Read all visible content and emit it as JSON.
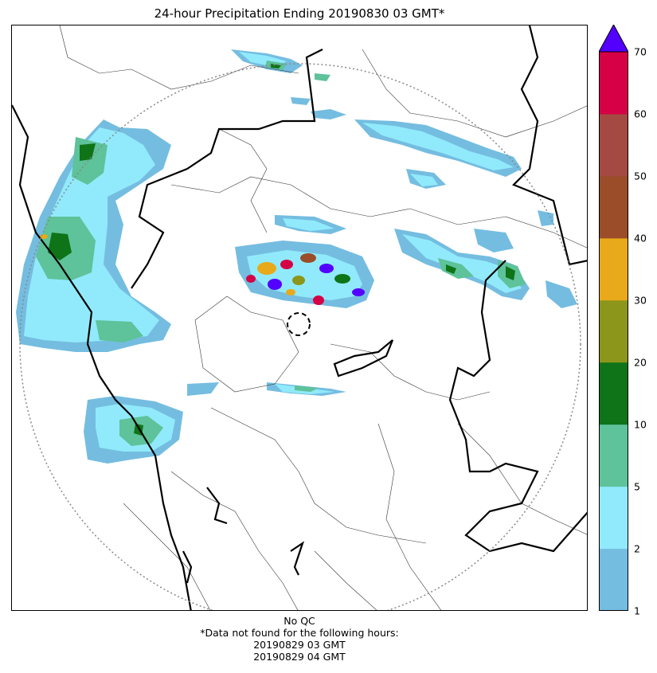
{
  "title": "24-hour Precipitation Ending 20190830 03 GMT*",
  "colorbar": {
    "tick_labels": [
      "1",
      "2",
      "5",
      "10",
      "20",
      "30",
      "40",
      "50",
      "60",
      "70"
    ],
    "levels": [
      1,
      2,
      5,
      10,
      20,
      30,
      40,
      50,
      60,
      70
    ],
    "colors": [
      "#74bde0",
      "#91eafb",
      "#5ec29a",
      "#0f7318",
      "#8b961a",
      "#e8a91a",
      "#9a4d28",
      "#a54a43",
      "#d50045"
    ],
    "extend_color": "#5300ff"
  },
  "footer": {
    "qc": "No QC",
    "note": "*Data not found for the following hours:",
    "missing_hours": [
      "20190829 03 GMT",
      "20190829 04 GMT"
    ]
  }
}
